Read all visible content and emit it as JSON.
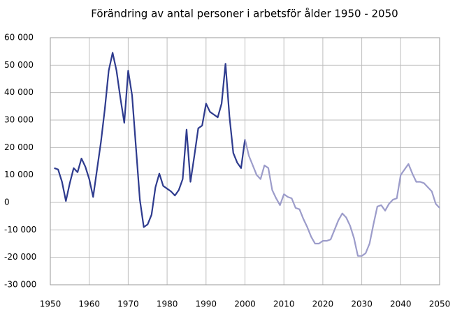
{
  "chart_data": {
    "type": "line",
    "title": "Förändring av antal personer i arbetsför ålder 1950 - 2050",
    "series": [
      {
        "color": "#2e3b8e",
        "x": [
          1951,
          1952,
          1953,
          1954,
          1955,
          1956,
          1957,
          1958,
          1959,
          1960,
          1961,
          1962,
          1963,
          1964,
          1965,
          1966,
          1967,
          1968,
          1969,
          1970,
          1971,
          1972,
          1973,
          1974,
          1975,
          1976,
          1977,
          1978,
          1979,
          1980,
          1981,
          1982,
          1983,
          1984,
          1985,
          1986,
          1987,
          1988,
          1989,
          1990,
          1991,
          1992,
          1993,
          1994,
          1995,
          1996,
          1997,
          1998,
          1999,
          2000
        ],
        "values": [
          12500,
          12000,
          7500,
          500,
          7000,
          12500,
          11000,
          16000,
          13000,
          8500,
          2000,
          12000,
          22000,
          34000,
          48000,
          54500,
          48000,
          38000,
          29000,
          48000,
          39000,
          20000,
          1000,
          -9000,
          -8000,
          -4500,
          5500,
          10500,
          6000,
          5000,
          4000,
          2500,
          4500,
          8500,
          26500,
          7500,
          17000,
          27000,
          28000,
          36000,
          33000,
          32000,
          31000,
          36000,
          50500,
          31500,
          18000,
          14500,
          12500,
          23000
        ]
      },
      {
        "color": "#9c9cca",
        "x": [
          2000,
          2001,
          2002,
          2003,
          2004,
          2005,
          2006,
          2007,
          2008,
          2009,
          2010,
          2011,
          2012,
          2013,
          2014,
          2015,
          2016,
          2017,
          2018,
          2019,
          2020,
          2021,
          2022,
          2023,
          2024,
          2025,
          2026,
          2027,
          2028,
          2029,
          2030,
          2031,
          2032,
          2033,
          2034,
          2035,
          2036,
          2037,
          2038,
          2039,
          2040,
          2041,
          2042,
          2043,
          2044,
          2045,
          2046,
          2047,
          2048,
          2049,
          2050
        ],
        "values": [
          23000,
          17000,
          13500,
          10000,
          8500,
          13500,
          12500,
          4500,
          1500,
          -1000,
          3000,
          2000,
          1500,
          -2000,
          -2500,
          -6000,
          -9000,
          -12500,
          -15000,
          -15000,
          -14000,
          -14000,
          -13500,
          -10000,
          -6500,
          -4000,
          -5500,
          -8500,
          -13000,
          -19500,
          -19500,
          -18500,
          -15000,
          -8000,
          -1500,
          -1000,
          -3000,
          -500,
          1000,
          1500,
          10000,
          12000,
          14000,
          10500,
          7500,
          7500,
          7000,
          5500,
          4000,
          -500,
          -2000
        ]
      }
    ],
    "xlim": [
      1950,
      2050
    ],
    "xticks": [
      1950,
      1960,
      1970,
      1980,
      1990,
      2000,
      2010,
      2020,
      2030,
      2040,
      2050
    ],
    "ylim": [
      -30000,
      60000
    ],
    "yticks": [
      {
        "value": -30000,
        "label": "-30 000"
      },
      {
        "value": -20000,
        "label": "-20 000"
      },
      {
        "value": -10000,
        "label": "-10 000"
      },
      0,
      {
        "value": 10000,
        "label": "10 000"
      },
      {
        "value": 20000,
        "label": "20 000"
      },
      {
        "value": 30000,
        "label": "30 000"
      },
      {
        "value": 40000,
        "label": "40 000"
      },
      {
        "value": 50000,
        "label": "50 000"
      },
      {
        "value": 60000,
        "label": "60 000"
      }
    ],
    "grid": true
  }
}
